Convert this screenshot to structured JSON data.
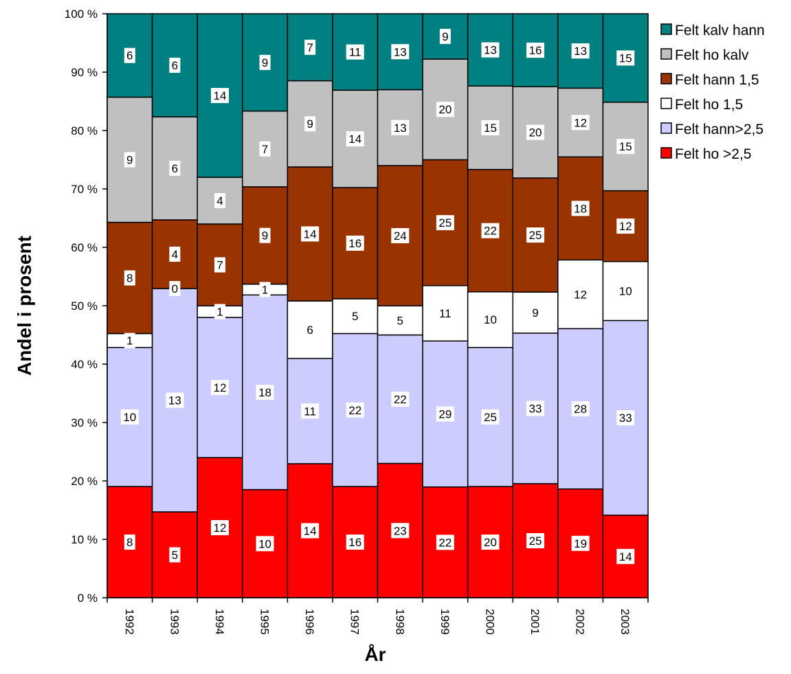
{
  "chart_data": {
    "type": "bar",
    "stacked": "percent",
    "title": "",
    "xlabel": "År",
    "ylabel": "Andel i prosent",
    "ylim": [
      0,
      100
    ],
    "y_ticks": [
      "0 %",
      "10 %",
      "20 %",
      "30 %",
      "40 %",
      "50 %",
      "60 %",
      "70 %",
      "80 %",
      "90 %",
      "100 %"
    ],
    "categories": [
      "1992",
      "1993",
      "1994",
      "1995",
      "1996",
      "1997",
      "1998",
      "1999",
      "2000",
      "2001",
      "2002",
      "2003"
    ],
    "legend_position": "right",
    "series": [
      {
        "name": "Felt ho >2,5",
        "color": "#ff0000",
        "values": [
          8,
          5,
          12,
          10,
          14,
          16,
          23,
          22,
          20,
          25,
          19,
          14
        ]
      },
      {
        "name": "Felt hann>2,5",
        "color": "#ccccff",
        "values": [
          10,
          13,
          12,
          18,
          11,
          22,
          22,
          29,
          25,
          33,
          28,
          33
        ]
      },
      {
        "name": "Felt ho 1,5",
        "color": "#ffffff",
        "values": [
          1,
          0,
          1,
          1,
          6,
          5,
          5,
          11,
          10,
          9,
          12,
          10
        ]
      },
      {
        "name": "Felt hann 1,5",
        "color": "#993300",
        "values": [
          8,
          4,
          7,
          9,
          14,
          16,
          24,
          25,
          22,
          25,
          18,
          12
        ]
      },
      {
        "name": "Felt ho kalv",
        "color": "#c0c0c0",
        "values": [
          9,
          6,
          4,
          7,
          9,
          14,
          13,
          20,
          15,
          20,
          12,
          15
        ]
      },
      {
        "name": "Felt kalv hann",
        "color": "#008080",
        "values": [
          6,
          6,
          14,
          9,
          7,
          11,
          13,
          9,
          13,
          16,
          13,
          15
        ]
      }
    ],
    "legend_order": [
      "Felt kalv hann",
      "Felt ho kalv",
      "Felt hann 1,5",
      "Felt ho 1,5",
      "Felt hann>2,5",
      "Felt ho >2,5"
    ]
  }
}
